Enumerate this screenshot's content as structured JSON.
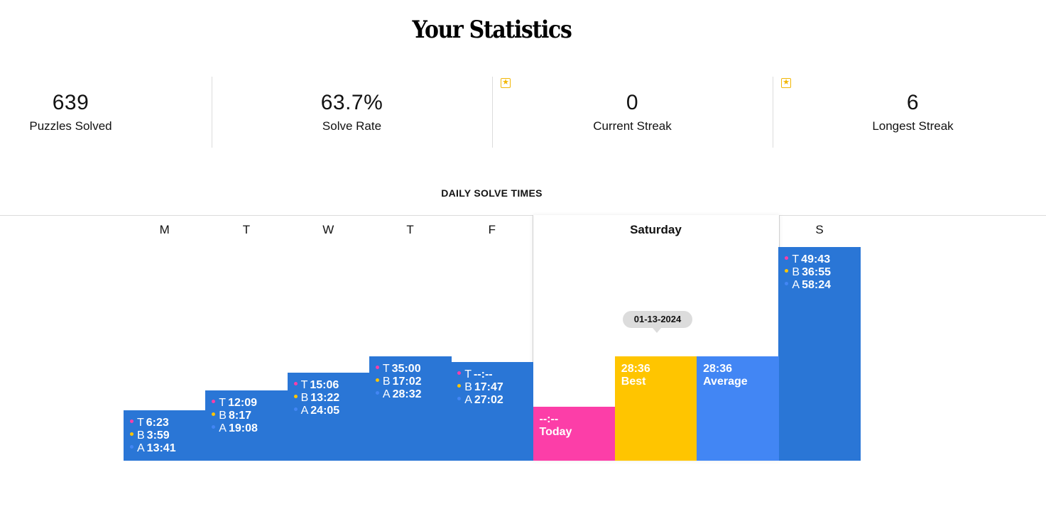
{
  "page": {
    "title": "Your Statistics"
  },
  "stats": [
    {
      "value": "639",
      "label": "Puzzles Solved",
      "starred": false
    },
    {
      "value": "63.7%",
      "label": "Solve Rate",
      "starred": false
    },
    {
      "value": "0",
      "label": "Current Streak",
      "starred": true
    },
    {
      "value": "6",
      "label": "Longest Streak",
      "starred": true
    }
  ],
  "chart_data": {
    "type": "bar",
    "title": "DAILY SOLVE TIMES",
    "categories": [
      "M",
      "T",
      "W",
      "T",
      "F",
      "Saturday",
      "S"
    ],
    "series": [
      {
        "name": "T",
        "values": [
          "6:23",
          "12:09",
          "15:06",
          "35:00",
          "--:--",
          "--:--",
          "49:43"
        ]
      },
      {
        "name": "B",
        "values": [
          "3:59",
          "8:17",
          "13:22",
          "17:02",
          "17:47",
          "28:36",
          "36:55"
        ]
      },
      {
        "name": "A",
        "values": [
          "13:41",
          "19:08",
          "24:05",
          "28:32",
          "27:02",
          "28:36",
          "58:24"
        ]
      }
    ],
    "selected_day": {
      "label": "Saturday",
      "today": {
        "value": "--:--",
        "label": "Today"
      },
      "best": {
        "value": "28:36",
        "label": "Best",
        "date": "01-13-2024"
      },
      "average": {
        "value": "28:36",
        "label": "Average"
      }
    },
    "colors": {
      "bar": "#2a76d6",
      "today": "#fc3ea8",
      "best": "#ffc500",
      "average": "#4286f4",
      "dot_t": "#fc3ea8",
      "dot_b": "#ffc500",
      "dot_a": "#4286f4"
    }
  }
}
